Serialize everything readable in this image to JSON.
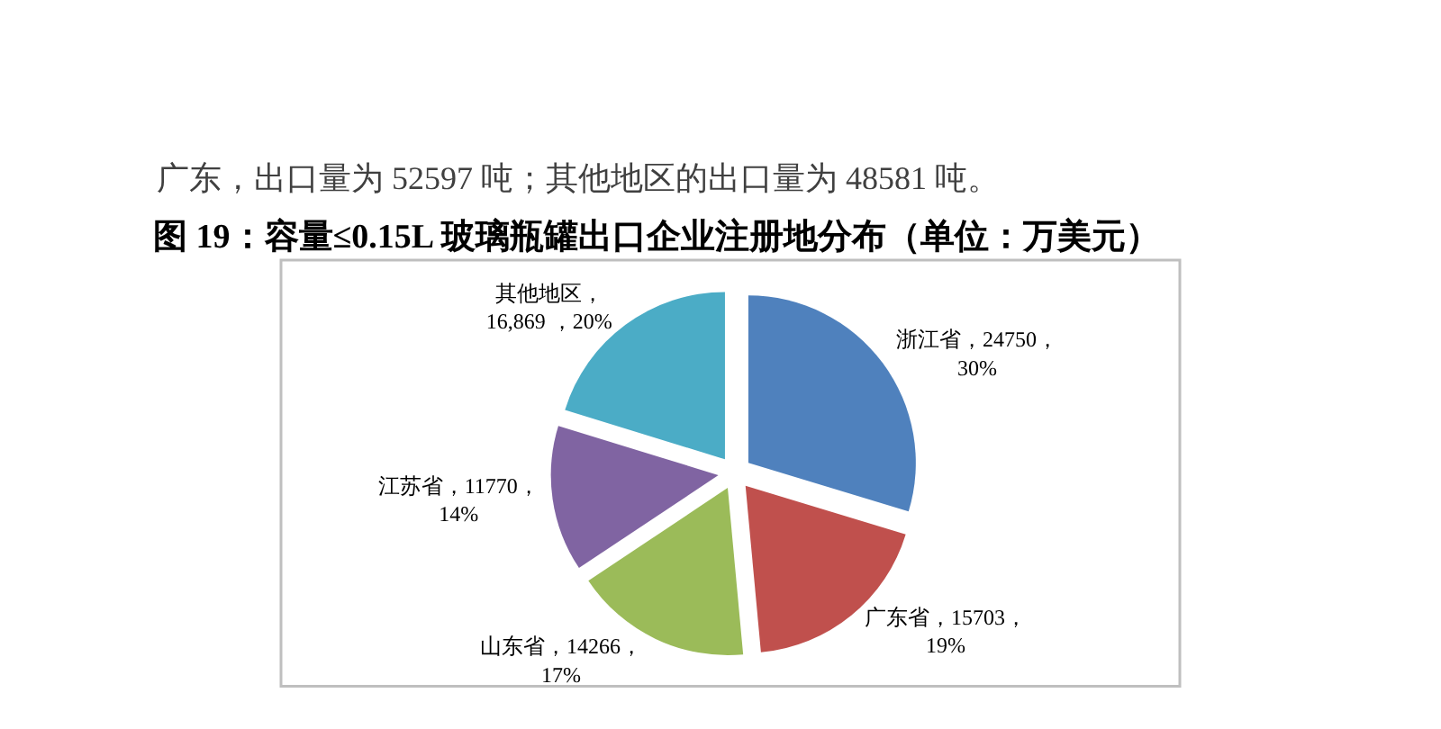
{
  "chart_data": {
    "type": "pie",
    "title": "图 19：容量≤0.15L 玻璃瓶罐出口企业注册地分布（单位：万美元）",
    "annotations": [
      "广东，出口量为 52597 吨；其他地区的出口量为 48581 吨。"
    ],
    "categories": [
      "浙江省",
      "广东省",
      "山东省",
      "江苏省",
      "其他地区"
    ],
    "values": [
      24750,
      15703,
      14266,
      11770,
      16869
    ],
    "colors": [
      "#4f81bd",
      "#c0504d",
      "#9bbb59",
      "#8064a2",
      "#4bacc6"
    ],
    "value_labels": [
      "，24750，30%",
      "，15703，19%",
      "，14266，17%",
      "，11770，14%",
      "，16,869 ，20%"
    ],
    "legend": false
  }
}
